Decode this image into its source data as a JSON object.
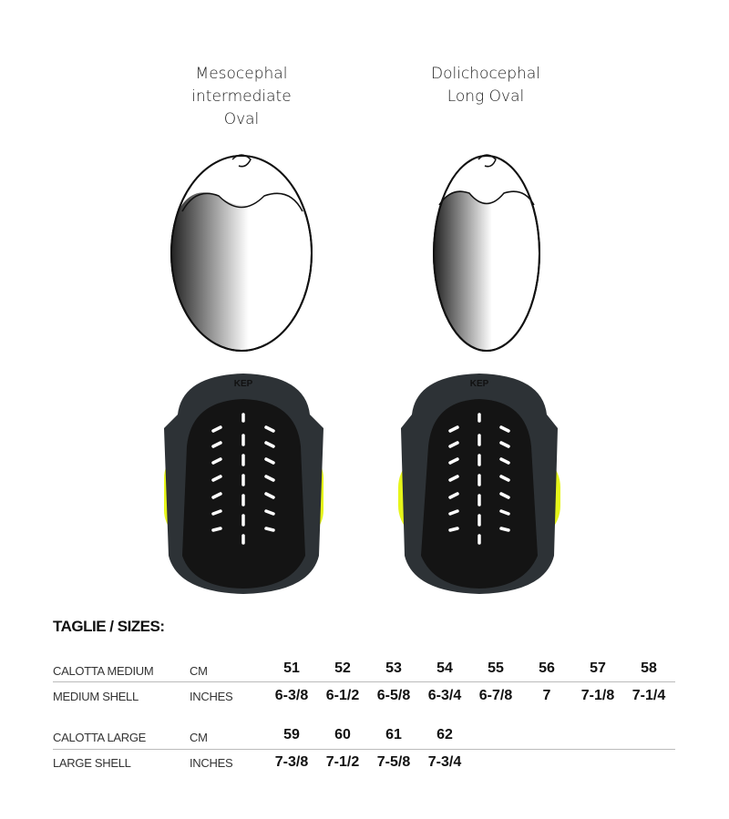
{
  "shapes": [
    {
      "lines": [
        "Mesocephal",
        "intermediate",
        "Oval"
      ]
    },
    {
      "lines": [
        "Dolichocephal",
        "Long  Oval"
      ]
    }
  ],
  "liner_logo": "KEP",
  "colors": {
    "accent": "#e6f51a",
    "liner": "#141414",
    "shell": "#2d3236"
  },
  "sizes": {
    "heading": "TAGLIE / SIZES:",
    "groups": [
      {
        "cm_label": "CALOTTA MEDIUM",
        "cm_unit": "CM",
        "in_label": "MEDIUM SHELL",
        "in_unit": "INCHES",
        "cm": [
          "51",
          "52",
          "53",
          "54",
          "55",
          "56",
          "57",
          "58"
        ],
        "inches": [
          "6-3/8",
          "6-1/2",
          "6-5/8",
          "6-3/4",
          "6-7/8",
          "7",
          "7-1/8",
          "7-1/4"
        ]
      },
      {
        "cm_label": "CALOTTA LARGE",
        "cm_unit": "CM",
        "in_label": "LARGE SHELL",
        "in_unit": "INCHES",
        "cm": [
          "59",
          "60",
          "61",
          "62"
        ],
        "inches": [
          "7-3/8",
          "7-1/2",
          "7-5/8",
          "7-3/4"
        ]
      }
    ]
  }
}
